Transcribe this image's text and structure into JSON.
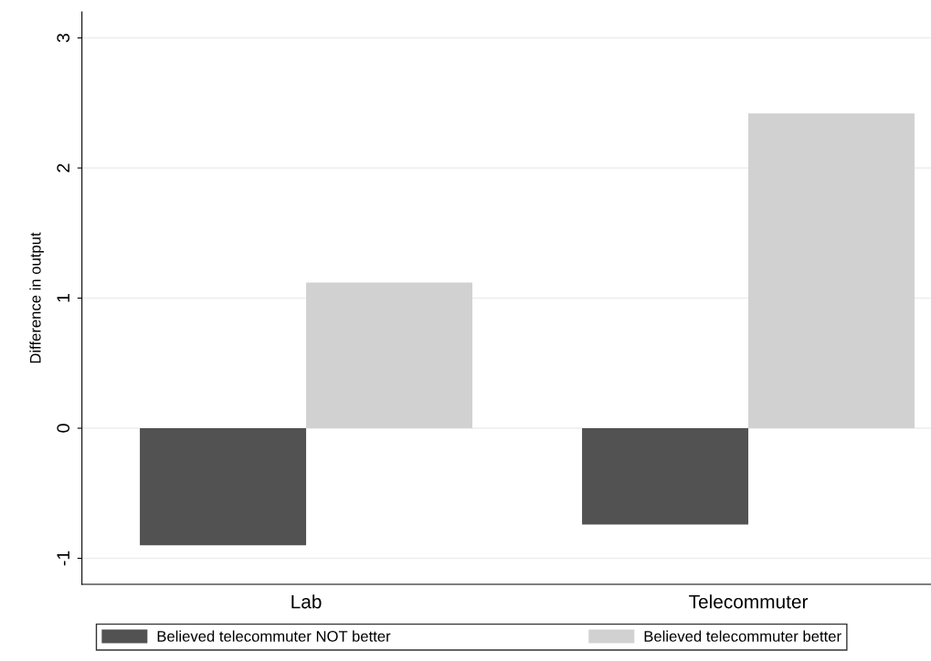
{
  "chart_data": {
    "type": "bar",
    "ylabel": "Difference in output",
    "categories": [
      "Lab",
      "Telecommuter"
    ],
    "series": [
      {
        "name": "Believed telecommuter NOT better",
        "color": "#525252",
        "values": [
          -0.9,
          -0.74
        ]
      },
      {
        "name": "Believed telecommuter better",
        "color": "#d1d1d1",
        "values": [
          1.12,
          2.42
        ]
      }
    ],
    "ylim": [
      -1.2,
      3.2
    ],
    "yticks": [
      -1,
      0,
      1,
      2,
      3
    ],
    "grid": "y",
    "legend": "bottom"
  }
}
